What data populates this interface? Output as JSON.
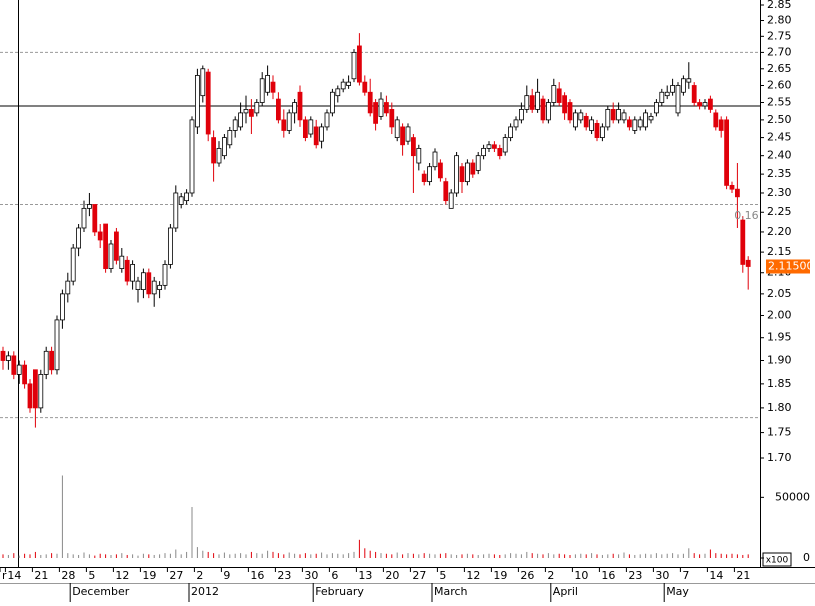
{
  "chart_data": {
    "type": "candlestick",
    "log_scale": true,
    "ylim": [
      1.7,
      2.85
    ],
    "yticks": [
      {
        "value": 1.7,
        "label": "1.70"
      },
      1.75,
      {
        "value": 1.8,
        "label": "1.80"
      },
      1.85,
      {
        "value": 1.9,
        "label": "1.90"
      },
      1.95,
      {
        "value": 2.0,
        "label": "2.00"
      },
      2.05,
      {
        "value": 2.1,
        "label": "2.10"
      },
      2.15,
      {
        "value": 2.2,
        "label": "2.20"
      },
      2.25,
      {
        "value": 2.3,
        "label": "2.30"
      },
      2.35,
      {
        "value": 2.4,
        "label": "2.40"
      },
      2.45,
      {
        "value": 2.5,
        "label": "2.50"
      },
      2.55,
      {
        "value": 2.6,
        "label": "2.60"
      },
      2.65,
      {
        "value": 2.7,
        "label": "2.70"
      },
      2.75,
      {
        "value": 2.8,
        "label": "2.80"
      },
      2.85
    ],
    "up_color": "#ffffff",
    "down_color": "#e0000a",
    "reference_lines": [
      2.7,
      2.27,
      1.78
    ],
    "crosshair_price": 2.54,
    "annotation": "0.16",
    "last_price": {
      "value": 2.115,
      "label": "2.11500",
      "color": "#ff6a00"
    },
    "volume_ylim": [
      0,
      75000
    ],
    "volume_ticks": [
      0,
      50000
    ],
    "volume_unit_label": "x100",
    "categories": [
      "r",
      "14",
      null,
      null,
      null,
      null,
      "21",
      null,
      null,
      null,
      null,
      "28",
      null,
      null,
      null,
      null,
      "5",
      null,
      null,
      null,
      null,
      "12",
      null,
      null,
      null,
      null,
      "19",
      null,
      null,
      null,
      null,
      "27",
      null,
      null,
      null,
      null,
      "2",
      null,
      null,
      null,
      null,
      "9",
      null,
      null,
      null,
      null,
      "16",
      null,
      null,
      null,
      null,
      "23",
      null,
      null,
      null,
      null,
      "30",
      null,
      null,
      null,
      null,
      "6",
      null,
      null,
      null,
      null,
      "13",
      null,
      null,
      null,
      null,
      "20",
      null,
      null,
      null,
      null,
      "27",
      null,
      null,
      null,
      null,
      "5",
      null,
      null,
      null,
      null,
      "12",
      null,
      null,
      null,
      null,
      "19",
      null,
      null,
      null,
      null,
      "26",
      null,
      null,
      null,
      null,
      "2",
      null,
      null,
      null,
      null,
      "10",
      null,
      null,
      null,
      null,
      "16",
      null,
      null,
      null,
      null,
      "23",
      null,
      null,
      null,
      null,
      "30",
      null,
      null,
      null,
      null,
      "7",
      null,
      null,
      null,
      null,
      "14",
      null,
      null,
      null,
      null,
      "21",
      null,
      null
    ],
    "months": [
      null,
      null,
      null,
      null,
      null,
      null,
      null,
      null,
      null,
      null,
      null,
      null,
      null,
      "December",
      null,
      null,
      null,
      null,
      null,
      null,
      null,
      null,
      null,
      null,
      null,
      null,
      null,
      null,
      null,
      null,
      null,
      null,
      null,
      null,
      null,
      "2012",
      null,
      null,
      null,
      null,
      null,
      null,
      null,
      null,
      null,
      null,
      null,
      null,
      null,
      null,
      null,
      null,
      null,
      null,
      null,
      null,
      null,
      null,
      "February",
      null,
      null,
      null,
      null,
      null,
      null,
      null,
      null,
      null,
      null,
      null,
      null,
      null,
      null,
      null,
      null,
      null,
      null,
      null,
      null,
      null,
      "March",
      null,
      null,
      null,
      null,
      null,
      null,
      null,
      null,
      null,
      null,
      null,
      null,
      null,
      null,
      null,
      null,
      null,
      null,
      null,
      null,
      null,
      "April",
      null,
      null,
      null,
      null,
      null,
      null,
      null,
      null,
      null,
      null,
      null,
      null,
      null,
      null,
      null,
      null,
      null,
      null,
      null,
      null,
      "May",
      null,
      null,
      null,
      null,
      null,
      null,
      null,
      null,
      null,
      null,
      null,
      null,
      null,
      null,
      null
    ],
    "candles": [
      [
        1.92,
        1.93,
        1.88,
        1.9
      ],
      [
        1.9,
        1.92,
        1.88,
        1.91
      ],
      [
        1.91,
        1.92,
        1.86,
        1.87
      ],
      [
        1.87,
        1.9,
        1.85,
        1.89
      ],
      [
        1.89,
        1.9,
        1.84,
        1.85
      ],
      [
        1.85,
        1.86,
        1.79,
        1.8
      ],
      [
        1.88,
        1.88,
        1.76,
        1.8
      ],
      [
        1.8,
        1.88,
        1.79,
        1.87
      ],
      [
        1.87,
        1.93,
        1.86,
        1.92
      ],
      [
        1.92,
        1.93,
        1.87,
        1.88
      ],
      [
        1.88,
        2.0,
        1.87,
        1.99
      ],
      [
        1.99,
        2.06,
        1.97,
        2.05
      ],
      [
        2.05,
        2.1,
        2.03,
        2.08
      ],
      [
        2.08,
        2.17,
        2.07,
        2.16
      ],
      [
        2.16,
        2.22,
        2.14,
        2.21
      ],
      [
        2.21,
        2.28,
        2.2,
        2.26
      ],
      [
        2.26,
        2.3,
        2.24,
        2.27
      ],
      [
        2.27,
        2.27,
        2.19,
        2.2
      ],
      [
        2.2,
        2.22,
        2.16,
        2.18
      ],
      [
        2.22,
        2.22,
        2.1,
        2.11
      ],
      [
        2.11,
        2.18,
        2.1,
        2.17
      ],
      [
        2.2,
        2.21,
        2.12,
        2.13
      ],
      [
        2.11,
        2.16,
        2.1,
        2.14
      ],
      [
        2.13,
        2.14,
        2.07,
        2.08
      ],
      [
        2.08,
        2.13,
        2.06,
        2.12
      ],
      [
        2.06,
        2.09,
        2.03,
        2.08
      ],
      [
        2.06,
        2.11,
        2.04,
        2.1
      ],
      [
        2.1,
        2.11,
        2.04,
        2.05
      ],
      [
        2.05,
        2.09,
        2.02,
        2.08
      ],
      [
        2.06,
        2.08,
        2.04,
        2.07
      ],
      [
        2.07,
        2.13,
        2.06,
        2.12
      ],
      [
        2.12,
        2.22,
        2.11,
        2.21
      ],
      [
        2.21,
        2.32,
        2.2,
        2.3
      ],
      [
        2.27,
        2.3,
        2.26,
        2.29
      ],
      [
        2.28,
        2.31,
        2.27,
        2.3
      ],
      [
        2.3,
        2.51,
        2.29,
        2.5
      ],
      [
        2.48,
        2.65,
        2.46,
        2.63
      ],
      [
        2.57,
        2.66,
        2.55,
        2.65
      ],
      [
        2.64,
        2.65,
        2.44,
        2.46
      ],
      [
        2.45,
        2.47,
        2.33,
        2.38
      ],
      [
        2.38,
        2.44,
        2.37,
        2.42
      ],
      [
        2.4,
        2.46,
        2.39,
        2.45
      ],
      [
        2.43,
        2.48,
        2.42,
        2.47
      ],
      [
        2.47,
        2.51,
        2.45,
        2.5
      ],
      [
        2.48,
        2.55,
        2.47,
        2.52
      ],
      [
        2.52,
        2.57,
        2.49,
        2.53
      ],
      [
        2.53,
        2.56,
        2.46,
        2.51
      ],
      [
        2.52,
        2.56,
        2.51,
        2.55
      ],
      [
        2.55,
        2.64,
        2.54,
        2.62
      ],
      [
        2.58,
        2.66,
        2.57,
        2.63
      ],
      [
        2.61,
        2.63,
        2.56,
        2.58
      ],
      [
        2.56,
        2.58,
        2.49,
        2.5
      ],
      [
        2.5,
        2.53,
        2.45,
        2.47
      ],
      [
        2.47,
        2.53,
        2.46,
        2.52
      ],
      [
        2.52,
        2.56,
        2.49,
        2.55
      ],
      [
        2.58,
        2.6,
        2.48,
        2.5
      ],
      [
        2.5,
        2.51,
        2.44,
        2.45
      ],
      [
        2.46,
        2.51,
        2.45,
        2.5
      ],
      [
        2.48,
        2.5,
        2.42,
        2.43
      ],
      [
        2.44,
        2.49,
        2.42,
        2.48
      ],
      [
        2.48,
        2.53,
        2.47,
        2.52
      ],
      [
        2.52,
        2.59,
        2.51,
        2.58
      ],
      [
        2.57,
        2.6,
        2.55,
        2.59
      ],
      [
        2.59,
        2.62,
        2.58,
        2.61
      ],
      [
        2.6,
        2.63,
        2.59,
        2.61
      ],
      [
        2.62,
        2.71,
        2.61,
        2.7
      ],
      [
        2.72,
        2.76,
        2.6,
        2.61
      ],
      [
        2.61,
        2.63,
        2.57,
        2.58
      ],
      [
        2.58,
        2.62,
        2.51,
        2.52
      ],
      [
        2.55,
        2.56,
        2.47,
        2.49
      ],
      [
        2.51,
        2.58,
        2.5,
        2.56
      ],
      [
        2.55,
        2.57,
        2.51,
        2.52
      ],
      [
        2.53,
        2.55,
        2.46,
        2.48
      ],
      [
        2.45,
        2.51,
        2.44,
        2.5
      ],
      [
        2.48,
        2.49,
        2.4,
        2.43
      ],
      [
        2.44,
        2.49,
        2.43,
        2.48
      ],
      [
        2.45,
        2.46,
        2.3,
        2.4
      ],
      [
        2.38,
        2.43,
        2.36,
        2.42
      ],
      [
        2.35,
        2.36,
        2.32,
        2.33
      ],
      [
        2.33,
        2.38,
        2.32,
        2.37
      ],
      [
        2.37,
        2.42,
        2.36,
        2.41
      ],
      [
        2.38,
        2.39,
        2.33,
        2.34
      ],
      [
        2.33,
        2.34,
        2.27,
        2.28
      ],
      [
        2.26,
        2.31,
        2.26,
        2.3
      ],
      [
        2.3,
        2.41,
        2.29,
        2.4
      ],
      [
        2.37,
        2.38,
        2.3,
        2.33
      ],
      [
        2.33,
        2.39,
        2.32,
        2.38
      ],
      [
        2.38,
        2.39,
        2.34,
        2.35
      ],
      [
        2.36,
        2.41,
        2.35,
        2.4
      ],
      [
        2.4,
        2.43,
        2.39,
        2.42
      ],
      [
        2.42,
        2.44,
        2.41,
        2.43
      ],
      [
        2.43,
        2.44,
        2.41,
        2.42
      ],
      [
        2.42,
        2.43,
        2.39,
        2.4
      ],
      [
        2.41,
        2.46,
        2.4,
        2.45
      ],
      [
        2.45,
        2.49,
        2.44,
        2.48
      ],
      [
        2.48,
        2.51,
        2.47,
        2.5
      ],
      [
        2.5,
        2.55,
        2.49,
        2.53
      ],
      [
        2.53,
        2.6,
        2.52,
        2.57
      ],
      [
        2.57,
        2.59,
        2.52,
        2.53
      ],
      [
        2.53,
        2.62,
        2.52,
        2.58
      ],
      [
        2.56,
        2.57,
        2.49,
        2.5
      ],
      [
        2.5,
        2.56,
        2.49,
        2.55
      ],
      [
        2.55,
        2.62,
        2.54,
        2.6
      ],
      [
        2.59,
        2.61,
        2.54,
        2.55
      ],
      [
        2.57,
        2.58,
        2.5,
        2.52
      ],
      [
        2.55,
        2.56,
        2.49,
        2.5
      ],
      [
        2.48,
        2.53,
        2.47,
        2.52
      ],
      [
        2.5,
        2.53,
        2.49,
        2.52
      ],
      [
        2.51,
        2.52,
        2.47,
        2.48
      ],
      [
        2.47,
        2.51,
        2.46,
        2.5
      ],
      [
        2.49,
        2.5,
        2.44,
        2.45
      ],
      [
        2.45,
        2.49,
        2.44,
        2.48
      ],
      [
        2.48,
        2.54,
        2.47,
        2.53
      ],
      [
        2.53,
        2.55,
        2.49,
        2.5
      ],
      [
        2.5,
        2.55,
        2.49,
        2.53
      ],
      [
        2.5,
        2.53,
        2.49,
        2.52
      ],
      [
        2.5,
        2.51,
        2.47,
        2.48
      ],
      [
        2.47,
        2.51,
        2.46,
        2.5
      ],
      [
        2.48,
        2.51,
        2.47,
        2.5
      ],
      [
        2.48,
        2.53,
        2.47,
        2.52
      ],
      [
        2.5,
        2.52,
        2.49,
        2.51
      ],
      [
        2.52,
        2.56,
        2.51,
        2.55
      ],
      [
        2.55,
        2.59,
        2.54,
        2.58
      ],
      [
        2.57,
        2.6,
        2.56,
        2.58
      ],
      [
        2.58,
        2.62,
        2.57,
        2.6
      ],
      [
        2.52,
        2.61,
        2.51,
        2.6
      ],
      [
        2.58,
        2.63,
        2.57,
        2.62
      ],
      [
        2.61,
        2.67,
        2.59,
        2.62
      ],
      [
        2.6,
        2.61,
        2.54,
        2.55
      ],
      [
        2.55,
        2.56,
        2.53,
        2.54
      ],
      [
        2.54,
        2.56,
        2.53,
        2.55
      ],
      [
        2.56,
        2.57,
        2.52,
        2.53
      ],
      [
        2.52,
        2.53,
        2.47,
        2.48
      ],
      [
        2.5,
        2.51,
        2.45,
        2.47
      ],
      [
        2.5,
        2.51,
        2.31,
        2.32
      ],
      [
        2.32,
        2.33,
        2.3,
        2.31
      ],
      [
        2.31,
        2.38,
        2.21,
        2.29
      ],
      [
        2.23,
        2.24,
        2.1,
        2.12
      ],
      [
        2.13,
        2.14,
        2.06,
        2.115
      ]
    ],
    "volume": [
      3000,
      2500,
      4000,
      2000,
      3500,
      3000,
      5000,
      2500,
      3000,
      4000,
      3500,
      68000,
      4000,
      3000,
      2500,
      4500,
      3000,
      2000,
      3500,
      3000,
      2500,
      3000,
      4000,
      2500,
      3000,
      2000,
      3500,
      3000,
      2500,
      3000,
      4000,
      3500,
      7000,
      3000,
      5000,
      42000,
      9000,
      6000,
      5000,
      4000,
      3000,
      4500,
      3000,
      3500,
      4000,
      3000,
      5000,
      4000,
      3500,
      6000,
      5000,
      4000,
      3000,
      4500,
      3500,
      3000,
      4000,
      3000,
      3500,
      4500,
      3000,
      4000,
      3500,
      3000,
      4000,
      5000,
      15000,
      8000,
      6000,
      5000,
      4000,
      3500,
      3000,
      4500,
      3000,
      4000,
      3500,
      3000,
      4000,
      3500,
      3000,
      3500,
      4000,
      3000,
      2500,
      3000,
      3500,
      3000,
      2500,
      3000,
      3500,
      3000,
      2500,
      3000,
      4000,
      3500,
      3000,
      5000,
      4000,
      3500,
      3000,
      4000,
      3000,
      3500,
      3000,
      2500,
      3000,
      3500,
      3000,
      4000,
      3000,
      2500,
      3000,
      3500,
      3000,
      4500,
      3000,
      2500,
      3000,
      3500,
      3000,
      4000,
      3000,
      3500,
      4000,
      3000,
      3500,
      8000,
      4000,
      3000,
      3500,
      7000,
      4000,
      3500,
      3000,
      3500,
      3000,
      2500,
      3000
    ]
  }
}
